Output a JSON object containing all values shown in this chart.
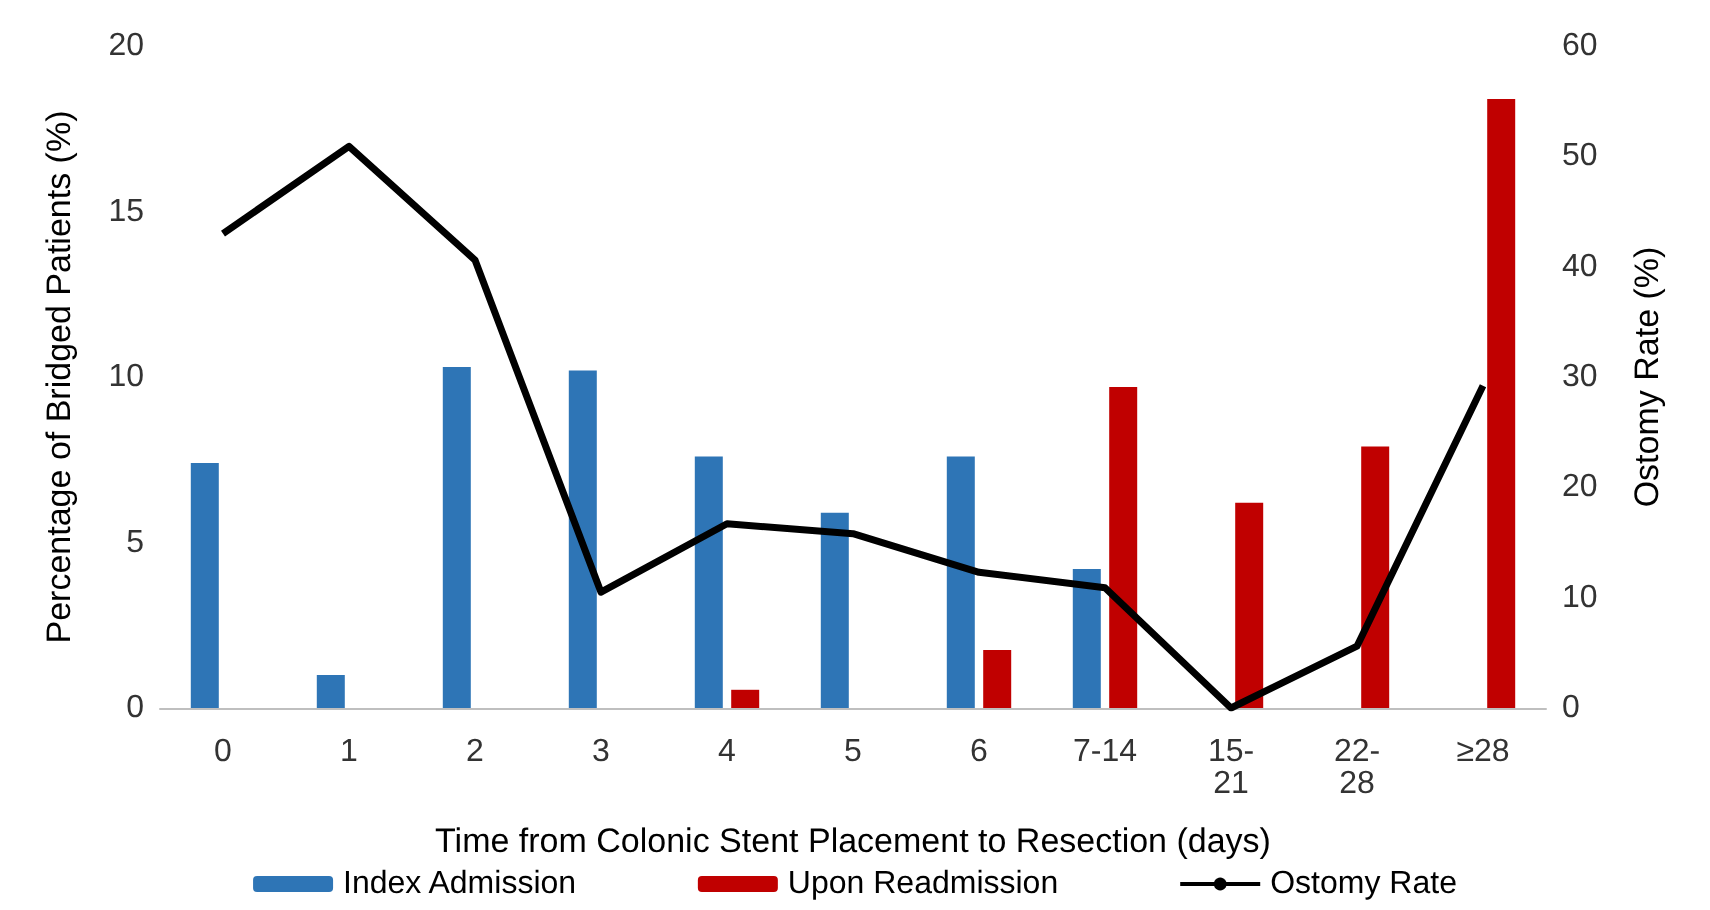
{
  "chart_data": {
    "type": "bar",
    "xlabel": "Time from Colonic Stent Placement to Resection (days)",
    "ylabel": "Percentage of Bridged Patients (%)",
    "y2label": "Ostomy Rate (%)",
    "categories": [
      "0",
      "1",
      "2",
      "3",
      "4",
      "5",
      "6",
      "7-14",
      "15-21",
      "22-28",
      "≥28"
    ],
    "series": [
      {
        "name": "Index Admission",
        "color": "#2e75b6",
        "values": [
          7.4,
          1.0,
          10.3,
          10.2,
          7.6,
          5.9,
          7.6,
          4.2,
          null,
          null,
          null
        ]
      },
      {
        "name": "Upon Readmission",
        "color": "#c00000",
        "values": [
          null,
          null,
          null,
          null,
          0.55,
          null,
          1.75,
          9.7,
          6.2,
          7.9,
          18.4
        ]
      },
      {
        "name": "Ostomy Rate",
        "type": "line",
        "axis": "y2",
        "color": "#000000",
        "marker": "none",
        "values": [
          43.0,
          50.9,
          40.6,
          10.5,
          16.7,
          15.8,
          12.3,
          10.9,
          0,
          5.6,
          29.2
        ]
      }
    ],
    "ylim": [
      0,
      20
    ],
    "yticks": [
      0,
      5,
      10,
      15,
      20
    ],
    "y2lim": [
      0,
      60
    ],
    "y2ticks": [
      0,
      10,
      20,
      30,
      40,
      50,
      60
    ],
    "grid": false,
    "legend": "bottom"
  }
}
